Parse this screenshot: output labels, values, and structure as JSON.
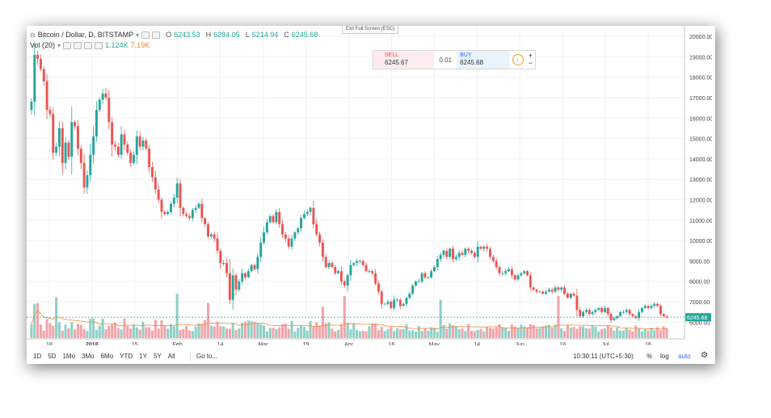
{
  "legend": {
    "symbol": "Bitcoin / Dollar, D, BITSTAMP",
    "open_key": "O",
    "open": "6243.53",
    "high_key": "H",
    "high": "6284.05",
    "low_key": "L",
    "low": "6214.94",
    "close_key": "C",
    "close": "6245.68",
    "volume_label": "Vol (20)",
    "volume_value": "1.124K",
    "volume_ma": "7.19K"
  },
  "exit_fullscreen_label": "Exit Full Screen (ESC)",
  "trade_panel": {
    "sell_label": "SELL",
    "sell_price": "6245.67",
    "spread": "0.01",
    "buy_label": "BUY",
    "buy_price": "6245.68",
    "info_icon": "i",
    "plus": "+",
    "minus": "−"
  },
  "bottom_bar": {
    "periods": [
      "1D",
      "5D",
      "1Mo",
      "3Mo",
      "6Mo",
      "YTD",
      "1Y",
      "5Y",
      "All"
    ],
    "goto_label": "Go to...",
    "time": "10:30:11 (UTC+5:30)",
    "percent_label": "%",
    "log_label": "log",
    "auto_label": "auto",
    "settings_icon": "gear-icon"
  },
  "colors": {
    "up": "#26a69a",
    "down": "#ef5350",
    "up_vol": "#8fd0c7",
    "down_vol": "#f4a3a8",
    "vol_ma": "#ef8a3a",
    "last_price": "#26a69a"
  },
  "chart_data": {
    "type": "candlestick",
    "title": "Bitcoin / Dollar, D, BITSTAMP",
    "y_ticks": [
      "20000.00",
      "19000.00",
      "18000.00",
      "17000.00",
      "16000.00",
      "15000.00",
      "14000.00",
      "13000.00",
      "12000.00",
      "11000.00",
      "10000.00",
      "9000.00",
      "8000.00",
      "7000.00",
      "6000.00"
    ],
    "ylim": [
      5500,
      20200
    ],
    "x_ticks": [
      "18",
      "2018",
      "15",
      "Feb",
      "14",
      "Mar",
      "19",
      "Apr",
      "16",
      "May",
      "14",
      "Jun",
      "18",
      "Jul",
      "16"
    ],
    "last_price_label": "6245.68",
    "last_price": 6245.68,
    "close_series": [
      16800,
      19100,
      18900,
      18400,
      17800,
      16400,
      16200,
      14300,
      14600,
      15500,
      13800,
      14800,
      14100,
      15800,
      15600,
      14500,
      13800,
      12600,
      13200,
      14200,
      15100,
      16400,
      16900,
      17200,
      17000,
      15800,
      14700,
      14600,
      14200,
      15200,
      14700,
      14300,
      13800,
      14200,
      15100,
      14600,
      14900,
      14500,
      13600,
      13100,
      12500,
      12000,
      11400,
      11300,
      11400,
      11800,
      12100,
      12800,
      11600,
      11300,
      11200,
      11100,
      11500,
      11600,
      11800,
      11100,
      10800,
      10200,
      10300,
      10100,
      9500,
      8900,
      8900,
      8400,
      7100,
      8300,
      7600,
      8000,
      8400,
      8200,
      8500,
      8800,
      8600,
      9200,
      9900,
      10400,
      10900,
      11200,
      10900,
      11400,
      10800,
      10300,
      10100,
      9700,
      10100,
      10400,
      10600,
      11100,
      11300,
      11400,
      11600,
      10800,
      10300,
      9900,
      9200,
      8700,
      8900,
      8700,
      8400,
      8500,
      8000,
      7800,
      8300,
      8800,
      8900,
      9000,
      9000,
      8800,
      8500,
      8500,
      8400,
      7900,
      7500,
      6900,
      6900,
      7000,
      6700,
      7100,
      7100,
      6800,
      6900,
      7200,
      7400,
      7800,
      8000,
      8000,
      8400,
      8200,
      8200,
      8500,
      8700,
      9100,
      9300,
      9500,
      9200,
      9600,
      9100,
      9200,
      9400,
      9300,
      9600,
      9500,
      9400,
      9200,
      9700,
      9600,
      9700,
      9600,
      9200,
      9000,
      8700,
      8400,
      8400,
      8500,
      8600,
      8300,
      8100,
      8300,
      8400,
      8500,
      8300,
      7700,
      7600,
      7500,
      7500,
      7400,
      7500,
      7600,
      7500,
      7700,
      7600,
      7700,
      7400,
      7200,
      7400,
      7300,
      6600,
      6300,
      6500,
      6600,
      6400,
      6500,
      6600,
      6700,
      6500,
      6700,
      6400,
      6100,
      6200,
      6300,
      6500,
      6500,
      6600,
      6400,
      6300,
      6200,
      6500,
      6700,
      6800,
      6700,
      6800,
      6900,
      6800,
      6400,
      6300,
      6250
    ]
  }
}
